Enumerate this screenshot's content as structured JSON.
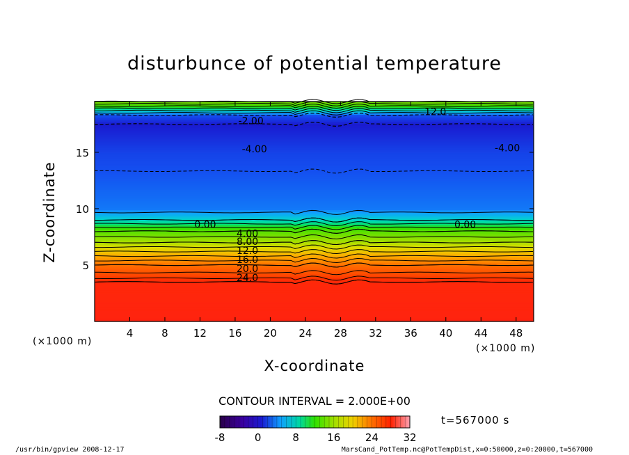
{
  "chart_data": {
    "type": "heatmap",
    "title": "disturbunce of potential temperature",
    "xlabel": "X-coordinate",
    "ylabel": "Z-coordinate",
    "x_unit": "(×1000 m)",
    "y_unit": "(×1000 m)",
    "xlim": [
      0,
      50
    ],
    "ylim": [
      0,
      19.5
    ],
    "x_ticks": [
      "4",
      "8",
      "12",
      "16",
      "20",
      "24",
      "28",
      "32",
      "36",
      "40",
      "44",
      "48"
    ],
    "x_tick_values": [
      4,
      8,
      12,
      16,
      20,
      24,
      28,
      32,
      36,
      40,
      44,
      48
    ],
    "y_ticks": [
      "5",
      "10",
      "15"
    ],
    "y_tick_values": [
      5,
      10,
      15
    ],
    "contour_interval": "CONTOUR INTERVAL = 2.000E+00",
    "time_label": "t=567000 s",
    "colorbar": {
      "min": -8,
      "max": 32,
      "tick_labels": [
        "-8",
        "0",
        "8",
        "16",
        "24",
        "32"
      ],
      "tick_values": [
        -8,
        0,
        8,
        16,
        24,
        32
      ]
    },
    "profile": {
      "description_z": [
        0,
        3.5,
        4,
        5,
        6,
        7,
        8,
        9,
        10,
        15,
        17.5,
        18.3,
        19.5
      ],
      "values": [
        29,
        28,
        25,
        22,
        17,
        12,
        8,
        2,
        -1,
        -2.5,
        -4,
        -2,
        10
      ]
    },
    "contour_labels": [
      {
        "text": "-2.00",
        "x": 17.8,
        "z": 17.8
      },
      {
        "text": "12.0",
        "x": 38.8,
        "z": 18.6
      },
      {
        "text": "-4.00",
        "x": 18.2,
        "z": 15.3
      },
      {
        "text": "-4.00",
        "x": 47.0,
        "z": 15.4
      },
      {
        "text": "0.00",
        "x": 12.6,
        "z": 8.6
      },
      {
        "text": "0.00",
        "x": 42.2,
        "z": 8.6
      },
      {
        "text": "4.00",
        "x": 17.4,
        "z": 7.8
      },
      {
        "text": "8.00",
        "x": 17.4,
        "z": 7.1
      },
      {
        "text": "12.0",
        "x": 17.4,
        "z": 6.3
      },
      {
        "text": "16.0",
        "x": 17.4,
        "z": 5.5
      },
      {
        "text": "20.0",
        "x": 17.4,
        "z": 4.7
      },
      {
        "text": "24.0",
        "x": 17.4,
        "z": 3.9
      }
    ],
    "legend": "none",
    "grid": false
  },
  "footer": {
    "left": "/usr/bin/gpview   2008-12-17",
    "right": "MarsCand_PotTemp.nc@PotTempDist,x=0:50000,z=0:20000,t=567000"
  }
}
